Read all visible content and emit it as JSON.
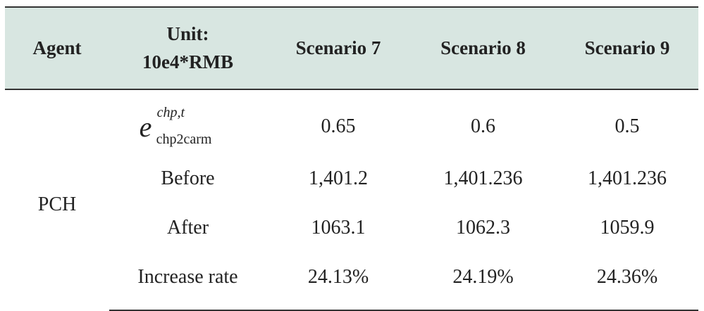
{
  "headers": {
    "agent": "Agent",
    "unit_line1": "Unit:",
    "unit_line2": "10e4*RMB",
    "scenario7": "Scenario 7",
    "scenario8": "Scenario 8",
    "scenario9": "Scenario 9"
  },
  "agent_label": "PCH",
  "factor": {
    "base": "e",
    "sup": "chp,t",
    "sub": "chp2carm"
  },
  "rows": [
    {
      "label": "",
      "s7": "0.65",
      "s8": "0.6",
      "s9": "0.5"
    },
    {
      "label": "Before",
      "s7": "1,401.2",
      "s8": "1,401.236",
      "s9": "1,401.236"
    },
    {
      "label": "After",
      "s7": "1063.1",
      "s8": "1062.3",
      "s9": "1059.9"
    },
    {
      "label": "Increase rate",
      "s7": "24.13%",
      "s8": "24.19%",
      "s9": "24.36%"
    }
  ]
}
